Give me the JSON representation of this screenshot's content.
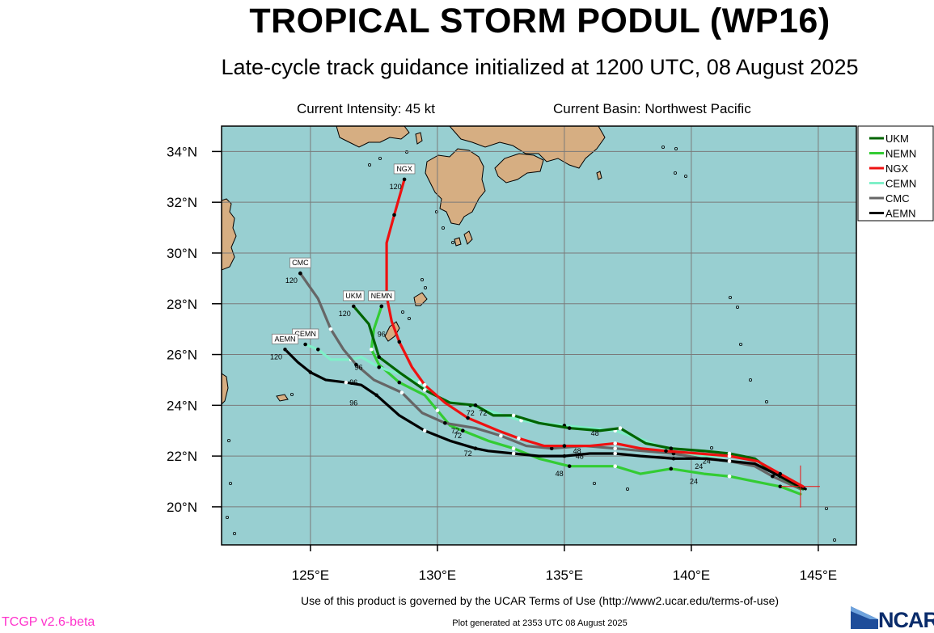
{
  "header": {
    "title": "TROPICAL STORM PODUL (WP16)",
    "subtitle": "Late-cycle track guidance initialized at 1200 UTC, 08 August 2025",
    "intensity": "Current Intensity: 45 kt",
    "basin": "Current Basin: Northwest Pacific"
  },
  "footer": {
    "notice": "Use of this product is governed by the UCAR Terms of Use (http://www2.ucar.edu/terms-of-use)",
    "version": "TCGP v2.6-beta",
    "generated": "Plot generated at 2353 UTC   08 August 2025",
    "logo_text": "NCAR"
  },
  "colors": {
    "ocean": "#98cfd1",
    "land": "#d6ae82",
    "grid": "#7a7a7a"
  },
  "map_bounds": {
    "lon": [
      121.5,
      146.5
    ],
    "lat": [
      18.5,
      35
    ]
  },
  "axis_ticks": {
    "lon": [
      {
        "value": 125,
        "label": "125°E"
      },
      {
        "value": 130,
        "label": "130°E"
      },
      {
        "value": 135,
        "label": "135°E"
      },
      {
        "value": 140,
        "label": "140°E"
      },
      {
        "value": 145,
        "label": "145°E"
      }
    ],
    "lat": [
      {
        "value": 20,
        "label": "20°N"
      },
      {
        "value": 22,
        "label": "22°N"
      },
      {
        "value": 24,
        "label": "24°N"
      },
      {
        "value": 26,
        "label": "26°N"
      },
      {
        "value": 28,
        "label": "28°N"
      },
      {
        "value": 30,
        "label": "30°N"
      },
      {
        "value": 32,
        "label": "32°N"
      },
      {
        "value": 34,
        "label": "34°N"
      }
    ]
  },
  "current_position": {
    "lon": 144.3,
    "lat": 20.8
  },
  "legend": [
    {
      "name": "UKM",
      "color": "#006400"
    },
    {
      "name": "NEMN",
      "color": "#33cc33"
    },
    {
      "name": "NGX",
      "color": "#ee1111"
    },
    {
      "name": "CEMN",
      "color": "#7ff0c8"
    },
    {
      "name": "CMC",
      "color": "#666666"
    },
    {
      "name": "AEMN",
      "color": "#000000"
    }
  ],
  "tracks": [
    {
      "name": "UKM",
      "color": "#006400",
      "tag": "UKM",
      "end_label": "120",
      "points": [
        [
          144.4,
          20.7
        ],
        [
          143.3,
          21.3
        ],
        [
          142.5,
          21.9
        ],
        [
          141.5,
          22.1
        ],
        [
          140.5,
          22.2
        ],
        [
          139.2,
          22.3
        ],
        [
          138.2,
          22.5
        ],
        [
          137.2,
          23.1
        ],
        [
          136.4,
          23.0
        ],
        [
          135.2,
          23.1
        ],
        [
          134.0,
          23.3
        ],
        [
          133.0,
          23.6
        ],
        [
          132.2,
          23.6
        ],
        [
          131.5,
          24.0
        ],
        [
          130.5,
          24.1
        ],
        [
          129.5,
          24.6
        ],
        [
          128.5,
          25.3
        ],
        [
          127.7,
          25.9
        ],
        [
          127.3,
          27.2
        ],
        [
          126.7,
          27.9
        ]
      ],
      "labels": [
        {
          "text": "48",
          "lon": 136.2,
          "lat": 22.8
        },
        {
          "text": "72",
          "lon": 131.8,
          "lat": 23.6
        },
        {
          "text": "96",
          "lon": 126.9,
          "lat": 25.4
        }
      ]
    },
    {
      "name": "NEMN",
      "color": "#33cc33",
      "tag": "NEMN",
      "end_label": "",
      "points": [
        [
          144.3,
          20.5
        ],
        [
          143.5,
          20.8
        ],
        [
          142.5,
          21.0
        ],
        [
          141.5,
          21.2
        ],
        [
          140.5,
          21.3
        ],
        [
          139.2,
          21.5
        ],
        [
          138.0,
          21.3
        ],
        [
          137.0,
          21.6
        ],
        [
          136.0,
          21.6
        ],
        [
          135.2,
          21.6
        ],
        [
          134.0,
          21.9
        ],
        [
          133.0,
          22.3
        ],
        [
          132.0,
          22.6
        ],
        [
          131.0,
          23.0
        ],
        [
          130.5,
          23.2
        ],
        [
          130.0,
          23.8
        ],
        [
          129.5,
          24.4
        ],
        [
          128.5,
          24.9
        ],
        [
          127.7,
          25.6
        ],
        [
          127.4,
          26.2
        ],
        [
          127.5,
          27.0
        ],
        [
          127.8,
          27.9
        ]
      ],
      "labels": [
        {
          "text": "24",
          "lon": 140.1,
          "lat": 20.9
        },
        {
          "text": "48",
          "lon": 134.8,
          "lat": 21.2
        },
        {
          "text": "72",
          "lon": 130.8,
          "lat": 22.7
        }
      ]
    },
    {
      "name": "NGX",
      "color": "#ee1111",
      "tag": "NGX",
      "end_label": "120",
      "points": [
        [
          144.4,
          20.8
        ],
        [
          143.5,
          21.3
        ],
        [
          142.6,
          21.8
        ],
        [
          141.5,
          22.0
        ],
        [
          140.3,
          22.1
        ],
        [
          139.0,
          22.2
        ],
        [
          138.0,
          22.3
        ],
        [
          137.0,
          22.5
        ],
        [
          136.0,
          22.4
        ],
        [
          135.0,
          22.4
        ],
        [
          134.2,
          22.4
        ],
        [
          133.2,
          22.7
        ],
        [
          132.4,
          23.0
        ],
        [
          131.2,
          23.5
        ],
        [
          130.3,
          24.1
        ],
        [
          129.5,
          24.8
        ],
        [
          129.0,
          25.5
        ],
        [
          128.5,
          26.5
        ],
        [
          128.2,
          27.3
        ],
        [
          128.0,
          28.3
        ],
        [
          128.0,
          30.4
        ],
        [
          128.3,
          31.5
        ],
        [
          128.7,
          32.9
        ]
      ],
      "labels": [
        {
          "text": "72",
          "lon": 131.3,
          "lat": 23.6
        },
        {
          "text": "96",
          "lon": 127.8,
          "lat": 26.7
        }
      ]
    },
    {
      "name": "CEMN",
      "color": "#7ff0c8",
      "tag": "CEMN",
      "end_label": "",
      "points": [
        [
          144.3,
          20.6
        ],
        [
          143.5,
          21.2
        ],
        [
          142.6,
          21.8
        ],
        [
          141.5,
          22.0
        ],
        [
          140.5,
          22.0
        ],
        [
          139.2,
          22.2
        ],
        [
          138.2,
          22.6
        ],
        [
          137.0,
          23.0
        ],
        [
          136.0,
          23.1
        ],
        [
          135.0,
          23.2
        ],
        [
          134.1,
          23.3
        ],
        [
          133.3,
          23.4
        ],
        [
          132.3,
          23.7
        ],
        [
          131.3,
          24.0
        ],
        [
          130.2,
          24.2
        ],
        [
          129.3,
          24.9
        ],
        [
          128.6,
          25.2
        ],
        [
          127.7,
          25.5
        ],
        [
          127.0,
          25.9
        ],
        [
          126.6,
          25.8
        ],
        [
          125.8,
          25.8
        ],
        [
          125.3,
          26.2
        ],
        [
          124.8,
          26.4
        ]
      ],
      "labels": []
    },
    {
      "name": "CMC",
      "color": "#666666",
      "tag": "CMC",
      "end_label": "120",
      "points": [
        [
          144.3,
          20.7
        ],
        [
          143.2,
          21.2
        ],
        [
          142.5,
          21.6
        ],
        [
          141.5,
          21.8
        ],
        [
          140.4,
          21.9
        ],
        [
          139.3,
          22.1
        ],
        [
          138.1,
          22.2
        ],
        [
          137.0,
          22.3
        ],
        [
          135.8,
          22.4
        ],
        [
          134.5,
          22.3
        ],
        [
          133.5,
          22.4
        ],
        [
          132.5,
          22.8
        ],
        [
          131.5,
          23.1
        ],
        [
          130.3,
          23.3
        ],
        [
          129.4,
          23.7
        ],
        [
          128.6,
          24.5
        ],
        [
          127.5,
          25.0
        ],
        [
          126.8,
          25.6
        ],
        [
          126.3,
          26.2
        ],
        [
          125.8,
          27.0
        ],
        [
          125.3,
          28.2
        ],
        [
          124.6,
          29.2
        ]
      ],
      "labels": [
        {
          "text": "24",
          "lon": 140.6,
          "lat": 21.7
        },
        {
          "text": "48",
          "lon": 135.5,
          "lat": 22.1
        },
        {
          "text": "72",
          "lon": 130.7,
          "lat": 22.9
        },
        {
          "text": "96",
          "lon": 126.7,
          "lat": 24.8
        }
      ]
    },
    {
      "name": "AEMN",
      "color": "#000000",
      "tag": "AEMN",
      "end_label": "120",
      "points": [
        [
          144.5,
          20.7
        ],
        [
          143.3,
          21.3
        ],
        [
          142.5,
          21.7
        ],
        [
          141.5,
          21.8
        ],
        [
          140.6,
          21.9
        ],
        [
          139.3,
          21.9
        ],
        [
          138.0,
          22.0
        ],
        [
          137.0,
          22.1
        ],
        [
          136.0,
          22.1
        ],
        [
          135.0,
          22.0
        ],
        [
          134.0,
          22.0
        ],
        [
          133.0,
          22.1
        ],
        [
          132.0,
          22.2
        ],
        [
          131.5,
          22.3
        ],
        [
          130.5,
          22.6
        ],
        [
          129.5,
          23.0
        ],
        [
          128.5,
          23.6
        ],
        [
          127.6,
          24.4
        ],
        [
          127.0,
          24.8
        ],
        [
          126.4,
          24.9
        ],
        [
          125.6,
          25.0
        ],
        [
          125.0,
          25.3
        ],
        [
          124.5,
          25.7
        ],
        [
          124.0,
          26.2
        ]
      ],
      "labels": [
        {
          "text": "24",
          "lon": 140.3,
          "lat": 21.5
        },
        {
          "text": "48",
          "lon": 135.6,
          "lat": 21.9
        },
        {
          "text": "72",
          "lon": 131.2,
          "lat": 22.0
        },
        {
          "text": "96",
          "lon": 126.7,
          "lat": 24.0
        }
      ]
    }
  ]
}
